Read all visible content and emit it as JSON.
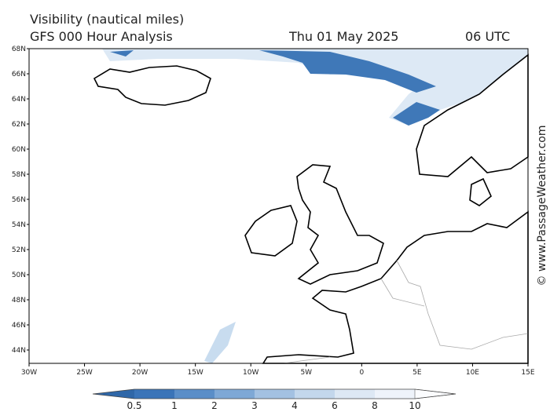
{
  "header": {
    "title": "Visibility (nautical miles)",
    "subtitle": "GFS 000 Hour Analysis",
    "date": "Thu 01 May 2025",
    "time": "06 UTC"
  },
  "map": {
    "lat_labels": [
      "68N",
      "66N",
      "64N",
      "62N",
      "60N",
      "58N",
      "56N",
      "54N",
      "52N",
      "50N",
      "48N",
      "46N",
      "44N"
    ],
    "lon_labels": [
      "30W",
      "25W",
      "20W",
      "15W",
      "10W",
      "5W",
      "0",
      "5E",
      "10E",
      "15E"
    ]
  },
  "colorbar": {
    "labels": [
      "0.5",
      "1",
      "2",
      "3",
      "4",
      "6",
      "8",
      "10"
    ]
  },
  "credit": "© www.PassageWeather.com"
}
